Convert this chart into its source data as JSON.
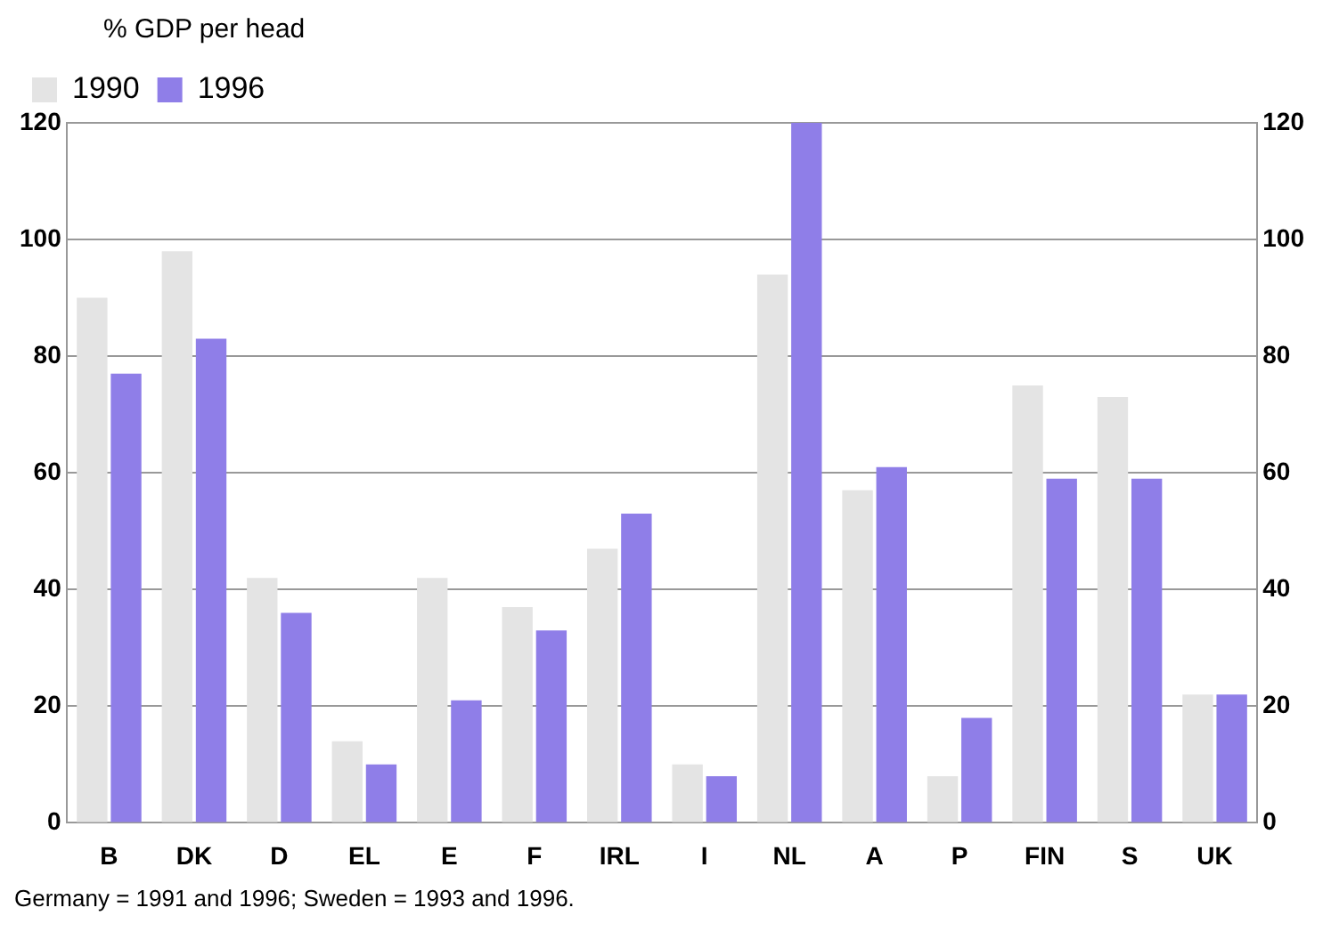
{
  "chart_data": {
    "type": "bar",
    "ylabel": "% GDP per head",
    "categories": [
      "B",
      "DK",
      "D",
      "EL",
      "E",
      "F",
      "IRL",
      "I",
      "NL",
      "A",
      "P",
      "FIN",
      "S",
      "UK"
    ],
    "series": [
      {
        "name": "1990",
        "color": "#e4e4e4",
        "values": [
          90,
          98,
          42,
          14,
          42,
          37,
          47,
          10,
          94,
          57,
          8,
          75,
          73,
          22
        ]
      },
      {
        "name": "1996",
        "color": "#8f7ee8",
        "values": [
          77,
          83,
          36,
          10,
          21,
          33,
          53,
          8,
          120,
          61,
          18,
          59,
          59,
          22
        ]
      }
    ],
    "ylim": [
      0,
      120
    ],
    "yticks": [
      0,
      20,
      40,
      60,
      80,
      100,
      120
    ],
    "y2lim": [
      0,
      120
    ],
    "y2ticks": [
      0,
      20,
      40,
      60,
      80,
      100,
      120
    ],
    "grid": "y",
    "legend": "top left",
    "annotations": [
      "Germany = 1991 and 1996; Sweden = 1993 and 1996."
    ]
  }
}
